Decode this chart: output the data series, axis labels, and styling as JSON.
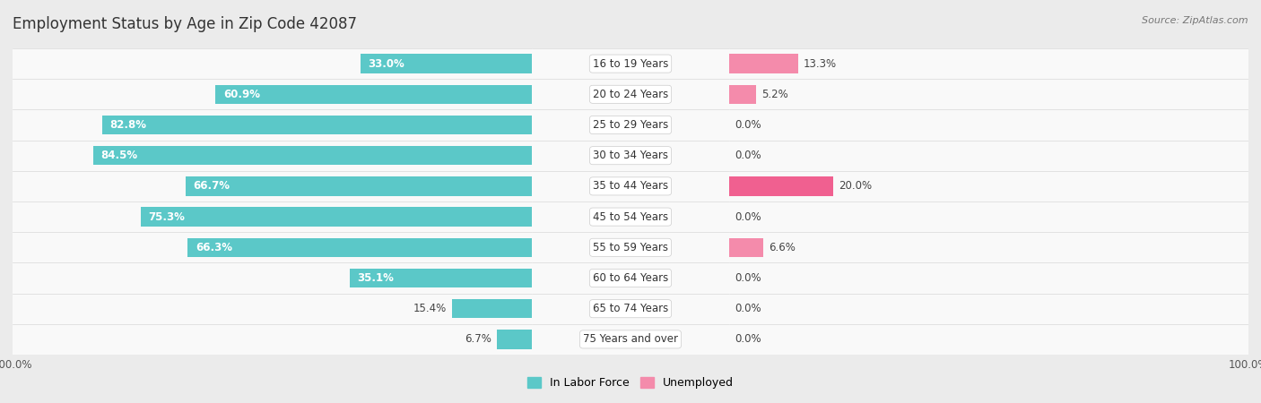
{
  "title": "Employment Status by Age in Zip Code 42087",
  "source": "Source: ZipAtlas.com",
  "categories": [
    "16 to 19 Years",
    "20 to 24 Years",
    "25 to 29 Years",
    "30 to 34 Years",
    "35 to 44 Years",
    "45 to 54 Years",
    "55 to 59 Years",
    "60 to 64 Years",
    "65 to 74 Years",
    "75 Years and over"
  ],
  "labor_force": [
    33.0,
    60.9,
    82.8,
    84.5,
    66.7,
    75.3,
    66.3,
    35.1,
    15.4,
    6.7
  ],
  "unemployed": [
    13.3,
    5.2,
    0.0,
    0.0,
    20.0,
    0.0,
    6.6,
    0.0,
    0.0,
    0.0
  ],
  "labor_force_color": "#5BC8C8",
  "unemployed_color": "#F48BAB",
  "unemployed_color_dark": "#F06090",
  "bar_height": 0.62,
  "xlim": 100.0,
  "legend_labor": "In Labor Force",
  "legend_unemployed": "Unemployed",
  "background_color": "#ebebeb",
  "row_bg_color": "#f9f9f9",
  "row_border_color": "#d8d8d8",
  "title_fontsize": 12,
  "label_fontsize": 8.5,
  "cat_fontsize": 8.5,
  "source_fontsize": 8
}
